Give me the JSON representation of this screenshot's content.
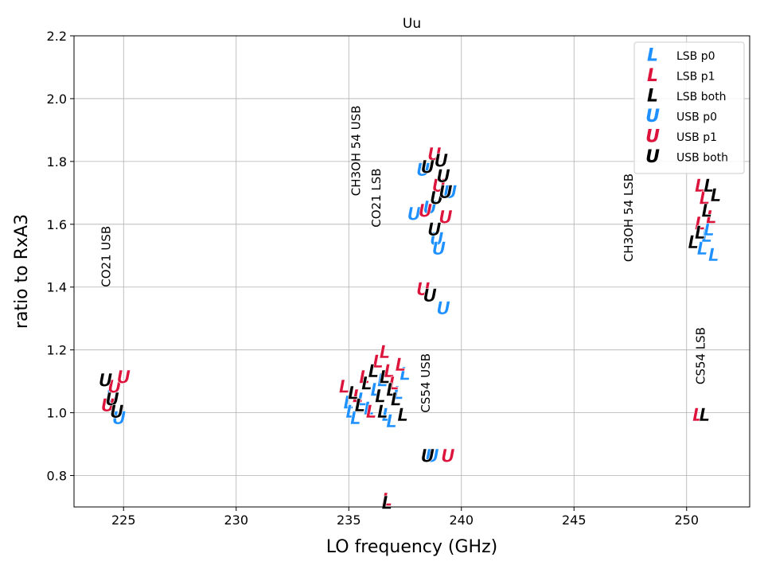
{
  "chart_data": {
    "type": "scatter",
    "title": "Uu",
    "xlabel": "LO frequency (GHz)",
    "ylabel": "ratio to RxA3",
    "xlim": [
      222.8,
      252.8
    ],
    "ylim": [
      0.7,
      2.2
    ],
    "xticks": [
      225,
      230,
      235,
      240,
      245,
      250
    ],
    "yticks": [
      0.8,
      1.0,
      1.2,
      1.4,
      1.6,
      1.8,
      2.0,
      2.2
    ],
    "grid": true,
    "legend_position": "top-right",
    "colors": {
      "p0": "#1e90ff",
      "p1": "#dc143c",
      "both": "#000000"
    },
    "series": [
      {
        "name": "LSB p0",
        "marker": "L",
        "color": "#1e90ff",
        "points": [
          [
            235.0,
            1.03
          ],
          [
            235.1,
            1.0
          ],
          [
            235.3,
            0.98
          ],
          [
            235.6,
            1.04
          ],
          [
            235.9,
            1.01
          ],
          [
            236.2,
            1.07
          ],
          [
            236.5,
            1.1
          ],
          [
            236.7,
            0.99
          ],
          [
            236.9,
            0.97
          ],
          [
            237.2,
            1.06
          ],
          [
            237.5,
            1.12
          ],
          [
            250.7,
            1.52
          ],
          [
            250.9,
            1.56
          ],
          [
            251.2,
            1.5
          ],
          [
            251.0,
            1.58
          ]
        ]
      },
      {
        "name": "LSB p1",
        "marker": "L",
        "color": "#dc143c",
        "points": [
          [
            234.8,
            1.08
          ],
          [
            235.4,
            1.05
          ],
          [
            235.7,
            1.11
          ],
          [
            236.0,
            1.0
          ],
          [
            236.3,
            1.16
          ],
          [
            236.6,
            1.19
          ],
          [
            236.8,
            1.13
          ],
          [
            237.0,
            1.09
          ],
          [
            237.3,
            1.15
          ],
          [
            236.7,
            0.72
          ],
          [
            250.6,
            1.72
          ],
          [
            250.8,
            1.68
          ],
          [
            250.6,
            1.6
          ],
          [
            251.1,
            1.62
          ],
          [
            250.5,
            0.99
          ]
        ]
      },
      {
        "name": "LSB both",
        "marker": "L",
        "color": "#000000",
        "points": [
          [
            235.2,
            1.06
          ],
          [
            235.5,
            1.02
          ],
          [
            235.8,
            1.09
          ],
          [
            236.1,
            1.13
          ],
          [
            236.4,
            1.05
          ],
          [
            236.5,
            1.0
          ],
          [
            236.6,
            1.11
          ],
          [
            236.9,
            1.07
          ],
          [
            237.1,
            1.04
          ],
          [
            237.4,
            0.99
          ],
          [
            236.7,
            0.71
          ],
          [
            250.3,
            1.54
          ],
          [
            250.6,
            1.57
          ],
          [
            250.9,
            1.64
          ],
          [
            251.0,
            1.72
          ],
          [
            251.3,
            1.69
          ],
          [
            250.8,
            0.99
          ]
        ]
      },
      {
        "name": "USB p0",
        "marker": "U",
        "color": "#1e90ff",
        "points": [
          [
            224.5,
            1.05
          ],
          [
            224.8,
            0.98
          ],
          [
            237.9,
            1.63
          ],
          [
            238.3,
            1.77
          ],
          [
            238.6,
            1.65
          ],
          [
            238.9,
            1.55
          ],
          [
            239.0,
            1.52
          ],
          [
            239.5,
            1.7
          ],
          [
            239.2,
            1.33
          ],
          [
            238.7,
            0.86
          ]
        ]
      },
      {
        "name": "USB p1",
        "marker": "U",
        "color": "#dc143c",
        "points": [
          [
            224.3,
            1.02
          ],
          [
            224.6,
            1.08
          ],
          [
            225.0,
            1.11
          ],
          [
            238.4,
            1.64
          ],
          [
            238.8,
            1.82
          ],
          [
            239.0,
            1.72
          ],
          [
            239.3,
            1.62
          ],
          [
            238.3,
            1.39
          ],
          [
            239.4,
            0.86
          ]
        ]
      },
      {
        "name": "USB both",
        "marker": "U",
        "color": "#000000",
        "points": [
          [
            224.2,
            1.1
          ],
          [
            224.5,
            1.04
          ],
          [
            224.7,
            1.0
          ],
          [
            238.5,
            1.78
          ],
          [
            238.8,
            1.58
          ],
          [
            238.9,
            1.68
          ],
          [
            239.1,
            1.8
          ],
          [
            239.2,
            1.75
          ],
          [
            239.3,
            1.7
          ],
          [
            238.6,
            1.37
          ],
          [
            238.5,
            0.86
          ]
        ]
      }
    ],
    "annotations": [
      {
        "text": "CO21 USB",
        "x": 224.4,
        "y": 1.4
      },
      {
        "text": "CH3OH 54 USB",
        "x": 235.5,
        "y": 1.69
      },
      {
        "text": "CO21 LSB",
        "x": 236.4,
        "y": 1.59
      },
      {
        "text": "CS54 USB",
        "x": 238.6,
        "y": 1.0
      },
      {
        "text": "CH3OH 54 LSB",
        "x": 247.6,
        "y": 1.48
      },
      {
        "text": "CS54 LSB",
        "x": 250.8,
        "y": 1.09
      }
    ]
  }
}
